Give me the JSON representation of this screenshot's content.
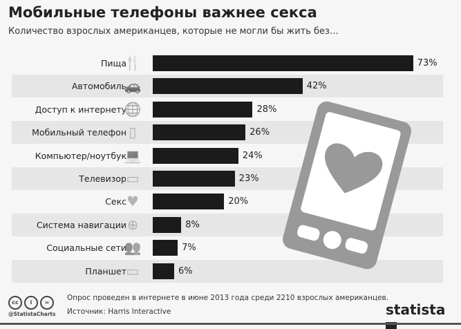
{
  "header": {
    "title": "Мобильные телефоны важнее секса",
    "subtitle": "Количество взрослых американцев, которые не могли бы жить без…"
  },
  "chart_data": {
    "type": "bar",
    "orientation": "horizontal",
    "categories": [
      "Пища",
      "Автомобиль",
      "Доступ к интернету",
      "Мобильный телефон",
      "Компьютер/ноутбук",
      "Телевизор",
      "Секс",
      "Система навигации",
      "Социальные сети",
      "Планшет"
    ],
    "icons": [
      "cutlery-icon",
      "car-icon",
      "internet-globe-icon",
      "mobile-phone-icon",
      "laptop-icon",
      "tv-icon",
      "heart-icon",
      "compass-icon",
      "people-icon",
      "tablet-icon"
    ],
    "values": [
      73,
      42,
      28,
      26,
      24,
      23,
      20,
      8,
      7,
      6
    ],
    "labels": [
      "73%",
      "42%",
      "28%",
      "26%",
      "24%",
      "23%",
      "20%",
      "8%",
      "7%",
      "6%"
    ],
    "unit": "%",
    "xlim": [
      0,
      100
    ],
    "bar_color": "#1b1b1b",
    "grid": false
  },
  "footer": {
    "note": "Опрос проведен в интернете в июне 2013 года среди 2210 взрослых американцев.",
    "source": "Источник: Harris Interactive",
    "handle": "@StatistaCharts",
    "brand": "statista"
  }
}
